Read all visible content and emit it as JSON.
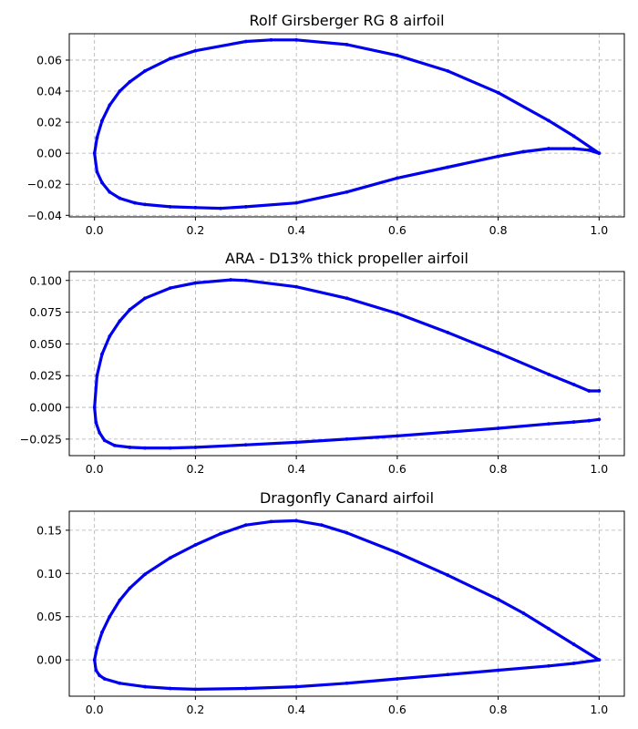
{
  "chart_data": [
    {
      "type": "scatter",
      "title": "Rolf Girsberger RG 8 airfoil",
      "xlim": [
        -0.05,
        1.05
      ],
      "ylim": [
        -0.041,
        0.077
      ],
      "xticks": [
        0.0,
        0.2,
        0.4,
        0.6,
        0.8,
        1.0
      ],
      "xtick_labels": [
        "0.0",
        "0.2",
        "0.4",
        "0.6",
        "0.8",
        "1.0"
      ],
      "yticks": [
        -0.04,
        -0.02,
        0.0,
        0.02,
        0.04,
        0.06
      ],
      "ytick_labels": [
        "−0.04",
        "−0.02",
        "0.00",
        "0.02",
        "0.04",
        "0.06"
      ],
      "grid": true,
      "color": "#0000ee",
      "series": [
        {
          "x": [
            1.0,
            0.95,
            0.9,
            0.8,
            0.7,
            0.6,
            0.5,
            0.4,
            0.35,
            0.3,
            0.2,
            0.15,
            0.1,
            0.07,
            0.05,
            0.03,
            0.015,
            0.005,
            0.0,
            0.005,
            0.015,
            0.03,
            0.05,
            0.08,
            0.1,
            0.15,
            0.2,
            0.25,
            0.3,
            0.4,
            0.5,
            0.6,
            0.7,
            0.8,
            0.85,
            0.9,
            0.95,
            0.98,
            1.0
          ],
          "y": [
            0.0,
            0.011,
            0.021,
            0.039,
            0.053,
            0.063,
            0.07,
            0.073,
            0.073,
            0.072,
            0.066,
            0.061,
            0.053,
            0.046,
            0.04,
            0.031,
            0.021,
            0.01,
            0.0,
            -0.012,
            -0.019,
            -0.025,
            -0.029,
            -0.032,
            -0.033,
            -0.0345,
            -0.035,
            -0.0355,
            -0.0345,
            -0.032,
            -0.025,
            -0.016,
            -0.009,
            -0.002,
            0.001,
            0.003,
            0.003,
            0.002,
            0.0
          ]
        }
      ]
    },
    {
      "type": "scatter",
      "title": "ARA - D13% thick propeller airfoil",
      "xlim": [
        -0.05,
        1.05
      ],
      "ylim": [
        -0.038,
        0.107
      ],
      "xticks": [
        0.0,
        0.2,
        0.4,
        0.6,
        0.8,
        1.0
      ],
      "xtick_labels": [
        "0.0",
        "0.2",
        "0.4",
        "0.6",
        "0.8",
        "1.0"
      ],
      "yticks": [
        -0.025,
        0.0,
        0.025,
        0.05,
        0.075,
        0.1
      ],
      "ytick_labels": [
        "−0.025",
        "0.000",
        "0.025",
        "0.050",
        "0.075",
        "0.100"
      ],
      "grid": true,
      "color": "#0000ee",
      "series": [
        {
          "x": [
            1.0,
            0.98,
            0.95,
            0.9,
            0.8,
            0.7,
            0.6,
            0.5,
            0.4,
            0.3,
            0.27,
            0.2,
            0.15,
            0.1,
            0.07,
            0.05,
            0.03,
            0.015,
            0.005,
            0.0,
            0.003,
            0.01,
            0.02,
            0.04,
            0.07,
            0.1,
            0.15,
            0.2,
            0.3,
            0.4,
            0.5,
            0.6,
            0.7,
            0.8,
            0.9,
            0.95,
            0.98,
            1.0
          ],
          "y": [
            0.013,
            0.013,
            0.018,
            0.026,
            0.043,
            0.059,
            0.074,
            0.086,
            0.095,
            0.1,
            0.1005,
            0.098,
            0.094,
            0.086,
            0.077,
            0.068,
            0.056,
            0.042,
            0.025,
            0.0,
            -0.012,
            -0.02,
            -0.026,
            -0.03,
            -0.0315,
            -0.032,
            -0.032,
            -0.0315,
            -0.0295,
            -0.0275,
            -0.025,
            -0.0225,
            -0.0195,
            -0.0165,
            -0.013,
            -0.0115,
            -0.0105,
            -0.0095
          ]
        }
      ]
    },
    {
      "type": "scatter",
      "title": "Dragonfly Canard airfoil",
      "xlim": [
        -0.05,
        1.05
      ],
      "ylim": [
        -0.042,
        0.172
      ],
      "xticks": [
        0.0,
        0.2,
        0.4,
        0.6,
        0.8,
        1.0
      ],
      "xtick_labels": [
        "0.0",
        "0.2",
        "0.4",
        "0.6",
        "0.8",
        "1.0"
      ],
      "yticks": [
        0.0,
        0.05,
        0.1,
        0.15
      ],
      "ytick_labels": [
        "0.00",
        "0.05",
        "0.10",
        "0.15"
      ],
      "grid": true,
      "color": "#0000ee",
      "series": [
        {
          "x": [
            1.0,
            0.95,
            0.9,
            0.85,
            0.8,
            0.7,
            0.6,
            0.5,
            0.45,
            0.4,
            0.35,
            0.3,
            0.25,
            0.2,
            0.15,
            0.1,
            0.07,
            0.05,
            0.03,
            0.015,
            0.005,
            0.0,
            0.003,
            0.01,
            0.02,
            0.05,
            0.1,
            0.15,
            0.2,
            0.3,
            0.4,
            0.5,
            0.6,
            0.7,
            0.8,
            0.9,
            0.95,
            1.0
          ],
          "y": [
            0.0,
            0.018,
            0.036,
            0.054,
            0.07,
            0.098,
            0.124,
            0.147,
            0.156,
            0.161,
            0.16,
            0.156,
            0.146,
            0.133,
            0.118,
            0.099,
            0.083,
            0.069,
            0.05,
            0.032,
            0.014,
            0.0,
            -0.012,
            -0.018,
            -0.022,
            -0.027,
            -0.031,
            -0.033,
            -0.034,
            -0.033,
            -0.031,
            -0.027,
            -0.022,
            -0.017,
            -0.012,
            -0.007,
            -0.004,
            0.0
          ]
        }
      ]
    }
  ]
}
